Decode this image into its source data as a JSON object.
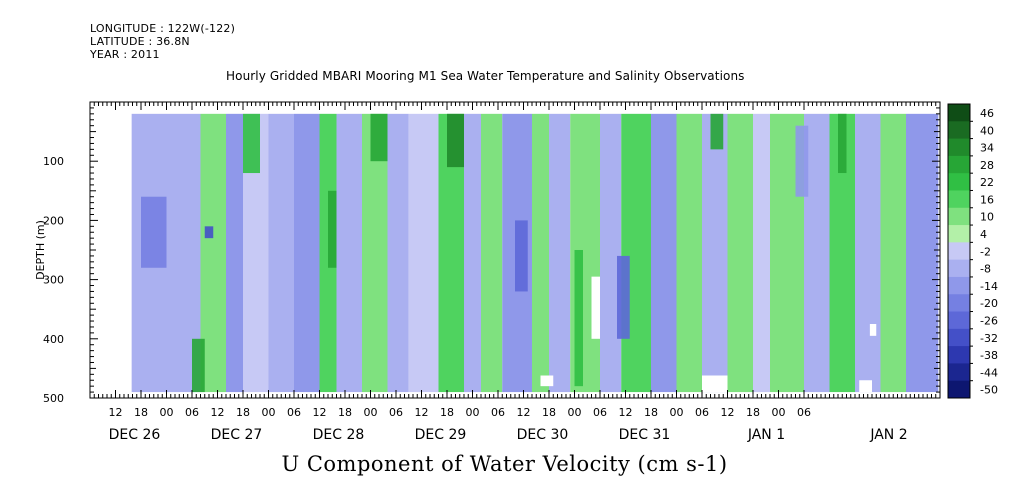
{
  "header": {
    "longitude": "LONGITUDE : 122W(-122)",
    "latitude": "LATITUDE : 36.8N",
    "year": "YEAR : 2011"
  },
  "chart_data": {
    "type": "heatmap",
    "title": "Hourly Gridded MBARI Mooring M1 Sea Water Temperature and Salinity Observations",
    "variable_title": "U Component of Water Velocity (cm s-1)",
    "ylabel": "DEPTH (m)",
    "ylim": [
      500,
      0
    ],
    "y_ticks": [
      100,
      200,
      300,
      400,
      500
    ],
    "x_hour_ticks": [
      "12",
      "18",
      "00",
      "06",
      "12",
      "18",
      "00",
      "06",
      "12",
      "18",
      "00",
      "06",
      "12",
      "18",
      "00",
      "06",
      "12",
      "18",
      "00",
      "06",
      "12",
      "18",
      "00",
      "06",
      "12",
      "18",
      "00",
      "06"
    ],
    "x_day_labels": [
      "DEC 26",
      "DEC 27",
      "DEC 28",
      "DEC 29",
      "DEC 30",
      "DEC 31",
      "JAN  1",
      "JAN  2"
    ],
    "colorbar": {
      "levels": [
        "46",
        "40",
        "34",
        "28",
        "22",
        "16",
        "10",
        "4",
        "-2",
        "-8",
        "-14",
        "-20",
        "-26",
        "-32",
        "-38",
        "-44",
        "-50"
      ],
      "colors": [
        "#0f4d16",
        "#1a6b22",
        "#208a2b",
        "#27a636",
        "#30bf44",
        "#4fd35f",
        "#7fe17f",
        "#b3f0a8",
        "#c7c9f5",
        "#aab0f0",
        "#8f98ea",
        "#7580e2",
        "#5d68d8",
        "#4450c8",
        "#2d38b0",
        "#1b2690",
        "#0d1670"
      ]
    },
    "bands": [
      {
        "hour_start": 9.8,
        "hour_end": 26,
        "value": -12
      },
      {
        "hour_start": 26,
        "hour_end": 32,
        "value": 8
      },
      {
        "hour_start": 32,
        "hour_end": 36,
        "value": -16
      },
      {
        "hour_start": 36,
        "hour_end": 42,
        "value": -8
      },
      {
        "hour_start": 42,
        "hour_end": 48,
        "value": -14
      },
      {
        "hour_start": 48,
        "hour_end": 54,
        "value": -18
      },
      {
        "hour_start": 54,
        "hour_end": 58,
        "value": 10
      },
      {
        "hour_start": 58,
        "hour_end": 64,
        "value": -10
      },
      {
        "hour_start": 64,
        "hour_end": 70,
        "value": 6
      },
      {
        "hour_start": 70,
        "hour_end": 75,
        "value": -14
      },
      {
        "hour_start": 75,
        "hour_end": 82,
        "value": -6
      },
      {
        "hour_start": 82,
        "hour_end": 88,
        "value": 12
      },
      {
        "hour_start": 88,
        "hour_end": 92,
        "value": -10
      },
      {
        "hour_start": 92,
        "hour_end": 97,
        "value": 8
      },
      {
        "hour_start": 97,
        "hour_end": 104,
        "value": -16
      },
      {
        "hour_start": 104,
        "hour_end": 108,
        "value": 4
      },
      {
        "hour_start": 108,
        "hour_end": 113,
        "value": -12
      },
      {
        "hour_start": 113,
        "hour_end": 120,
        "value": 6
      },
      {
        "hour_start": 120,
        "hour_end": 125,
        "value": -14
      },
      {
        "hour_start": 125,
        "hour_end": 132,
        "value": 10
      },
      {
        "hour_start": 132,
        "hour_end": 138,
        "value": -18
      },
      {
        "hour_start": 138,
        "hour_end": 144,
        "value": 6
      },
      {
        "hour_start": 144,
        "hour_end": 150,
        "value": -12
      },
      {
        "hour_start": 150,
        "hour_end": 156,
        "value": 8
      },
      {
        "hour_start": 156,
        "hour_end": 160,
        "value": -8
      },
      {
        "hour_start": 160,
        "hour_end": 168,
        "value": 4
      },
      {
        "hour_start": 168,
        "hour_end": 174,
        "value": -14
      },
      {
        "hour_start": 174,
        "hour_end": 180,
        "value": 12
      },
      {
        "hour_start": 180,
        "hour_end": 186,
        "value": -12
      },
      {
        "hour_start": 186,
        "hour_end": 192,
        "value": 6
      },
      {
        "hour_start": 192,
        "hour_end": 199.6,
        "value": -16
      }
    ],
    "patches": [
      {
        "hour_start": 12,
        "hour_end": 18,
        "depth_top": 160,
        "depth_bot": 280,
        "value": -26
      },
      {
        "hour_start": 24,
        "hour_end": 27,
        "depth_top": 400,
        "depth_bot": 490,
        "value": 22
      },
      {
        "hour_start": 27,
        "hour_end": 29,
        "depth_top": 210,
        "depth_bot": 230,
        "value": -38
      },
      {
        "hour_start": 36,
        "hour_end": 40,
        "depth_top": 20,
        "depth_bot": 120,
        "value": 16
      },
      {
        "hour_start": 56,
        "hour_end": 58,
        "depth_top": 150,
        "depth_bot": 280,
        "value": 22
      },
      {
        "hour_start": 66,
        "hour_end": 70,
        "depth_top": 20,
        "depth_bot": 100,
        "value": 22
      },
      {
        "hour_start": 84,
        "hour_end": 88,
        "depth_top": 20,
        "depth_bot": 110,
        "value": 28
      },
      {
        "hour_start": 100,
        "hour_end": 103,
        "depth_top": 200,
        "depth_bot": 320,
        "value": -28
      },
      {
        "hour_start": 114,
        "hour_end": 116,
        "depth_top": 250,
        "depth_bot": 480,
        "value": 16
      },
      {
        "hour_start": 124,
        "hour_end": 127,
        "depth_top": 260,
        "depth_bot": 400,
        "value": -32
      },
      {
        "hour_start": 146,
        "hour_end": 149,
        "depth_top": 20,
        "depth_bot": 80,
        "value": 22
      },
      {
        "hour_start": 166,
        "hour_end": 169,
        "depth_top": 40,
        "depth_bot": 160,
        "value": -20
      },
      {
        "hour_start": 176,
        "hour_end": 178,
        "depth_top": 20,
        "depth_bot": 120,
        "value": 22
      }
    ],
    "missing": [
      {
        "hour_start": 106,
        "hour_end": 109,
        "depth_top": 462,
        "depth_bot": 480
      },
      {
        "hour_start": 118,
        "hour_end": 120,
        "depth_top": 295,
        "depth_bot": 400
      },
      {
        "hour_start": 144,
        "hour_end": 150,
        "depth_top": 462,
        "depth_bot": 490
      },
      {
        "hour_start": 181,
        "hour_end": 184,
        "depth_top": 470,
        "depth_bot": 490
      },
      {
        "hour_start": 183.5,
        "hour_end": 185,
        "depth_top": 375,
        "depth_bot": 395
      }
    ]
  }
}
